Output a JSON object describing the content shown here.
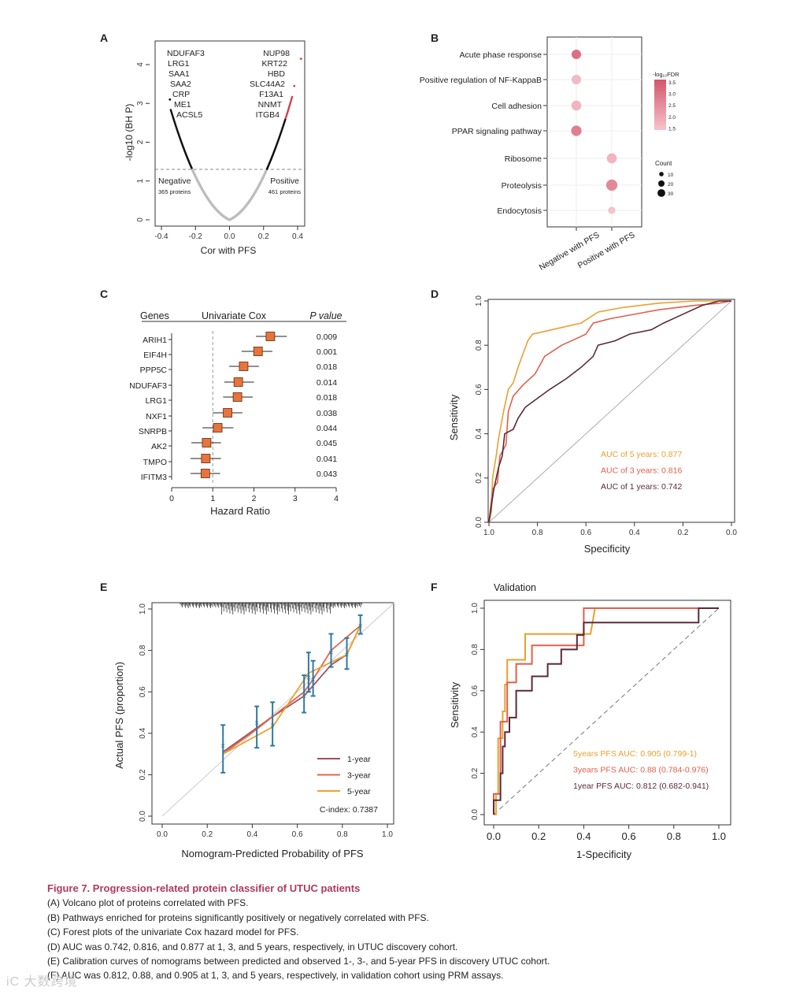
{
  "caption": {
    "title": "Figure 7.  Progression-related protein classifier of UTUC patients",
    "lines": [
      "(A) Volcano plot of proteins correlated with PFS.",
      "(B) Pathways enriched for proteins significantly positively or negatively correlated with PFS.",
      "(C) Forest plots of the univariate Cox hazard model for PFS.",
      "(D) AUC was 0.742, 0.816, and 0.877 at 1, 3, and 5 years, respectively, in UTUC discovery cohort.",
      "(E) Calibration curves of nomograms between predicted and observed 1-, 3-, and 5-year PFS in discovery UTUC cohort.",
      "(F) AUC was 0.812, 0.88, and 0.905 at 1, 3, and 5 years, respectively, in validation cohort using PRM assays."
    ]
  },
  "watermark": "iC 大数跨境",
  "chart_data": [
    {
      "panel": "A",
      "type": "scatter",
      "title": "",
      "xlabel": "Cor with PFS",
      "ylabel": "-log10 (BH P)",
      "xlim": [
        -0.45,
        0.45
      ],
      "ylim": [
        -0.1,
        4.4
      ],
      "xticks": [
        "-0.4",
        "-0.2",
        "0.0",
        "0.2",
        "0.4"
      ],
      "yticks": [
        "0",
        "1",
        "2",
        "3",
        "4"
      ],
      "threshold": 1.3,
      "negative": {
        "label": "Negative",
        "count_label": "365 proteins"
      },
      "positive": {
        "label": "Positive",
        "count_label": "461 proteins"
      },
      "genes_negative": [
        "NDUFAF3",
        "LRG1",
        "SAA1",
        "SAA2",
        "CRP",
        "ME1",
        "ACSL5"
      ],
      "genes_positive": [
        "NUP98",
        "KRT22",
        "HBD",
        "SLC44A2",
        "F13A1",
        "NNMT",
        "ITGB4"
      ],
      "outliers": [
        {
          "x": -0.35,
          "y": 3.1
        },
        {
          "x": 0.38,
          "y": 3.45
        },
        {
          "x": 0.42,
          "y": 4.15
        }
      ],
      "colors": {
        "ns": "#bdbdbd",
        "sig": "#111111",
        "top": "#d04050"
      }
    },
    {
      "panel": "B",
      "type": "scatter",
      "categories": [
        "Negative with PFS",
        "Positive with PFS"
      ],
      "pathways": [
        {
          "name": "Acute phase response",
          "group": 0,
          "neglogFDR": 3.3,
          "count": 20
        },
        {
          "name": "Positive regulation of NF-KappaB",
          "group": 0,
          "neglogFDR": 1.8,
          "count": 20
        },
        {
          "name": "Cell adhesion",
          "group": 0,
          "neglogFDR": 1.9,
          "count": 22
        },
        {
          "name": "PPAR signaling pathway",
          "group": 0,
          "neglogFDR": 3.0,
          "count": 24
        },
        {
          "name": "Ribosome",
          "group": 1,
          "neglogFDR": 1.9,
          "count": 22
        },
        {
          "name": "Proteolysis",
          "group": 1,
          "neglogFDR": 2.8,
          "count": 28
        },
        {
          "name": "Endocytosis",
          "group": 1,
          "neglogFDR": 1.6,
          "count": 12
        }
      ],
      "color_legend": {
        "title": "-log₁₀FDR",
        "ticks": [
          "3.5",
          "3.0",
          "2.5",
          "2.0",
          "1.5"
        ],
        "range": [
          1.5,
          3.5
        ],
        "low": "#f6c3ca",
        "high": "#d2566b"
      },
      "size_legend": {
        "title": "Count",
        "values": [
          10,
          20,
          30
        ],
        "labels": [
          "10",
          "20",
          "30"
        ]
      }
    },
    {
      "panel": "C",
      "type": "forest",
      "headers": [
        "Genes",
        "Univariate Cox",
        "P value"
      ],
      "xlabel": "Hazard Ratio",
      "xlim": [
        0,
        4
      ],
      "xticks": [
        "0",
        "1",
        "2",
        "3",
        "4"
      ],
      "reference": 1,
      "rows": [
        {
          "gene": "ARIH1",
          "hr": 2.4,
          "lo": 2.05,
          "hi": 2.8,
          "p": "0.009"
        },
        {
          "gene": "EIF4H",
          "hr": 2.1,
          "lo": 1.7,
          "hi": 2.45,
          "p": "0.001"
        },
        {
          "gene": "PPP5C",
          "hr": 1.75,
          "lo": 1.4,
          "hi": 2.12,
          "p": "0.018"
        },
        {
          "gene": "NDUFAF3",
          "hr": 1.62,
          "lo": 1.28,
          "hi": 2.0,
          "p": "0.014"
        },
        {
          "gene": "LRG1",
          "hr": 1.6,
          "lo": 1.25,
          "hi": 1.97,
          "p": "0.018"
        },
        {
          "gene": "NXF1",
          "hr": 1.36,
          "lo": 1.0,
          "hi": 1.72,
          "p": "0.038"
        },
        {
          "gene": "SNRPB",
          "hr": 1.12,
          "lo": 0.75,
          "hi": 1.5,
          "p": "0.044"
        },
        {
          "gene": "AK2",
          "hr": 0.85,
          "lo": 0.48,
          "hi": 1.2,
          "p": "0.045"
        },
        {
          "gene": "TMPO",
          "hr": 0.83,
          "lo": 0.46,
          "hi": 1.2,
          "p": "0.041"
        },
        {
          "gene": "IFITM3",
          "hr": 0.82,
          "lo": 0.46,
          "hi": 1.18,
          "p": "0.043"
        }
      ],
      "color": "#e8743b"
    },
    {
      "panel": "D",
      "type": "line",
      "xlabel": "Specificity",
      "ylabel": "Sensitivity",
      "xlim": [
        1.0,
        0.0
      ],
      "ylim": [
        0,
        1
      ],
      "xticks": [
        "1.0",
        "0.8",
        "0.6",
        "0.4",
        "0.2",
        "0.0"
      ],
      "yticks": [
        "0.0",
        "0.2",
        "0.4",
        "0.6",
        "0.8",
        "1.0"
      ],
      "series": [
        {
          "name": "AUC of 5 years: 0.877",
          "color": "#eaa030",
          "points": [
            [
              1,
              0
            ],
            [
              0.99,
              0.05
            ],
            [
              0.985,
              0.2
            ],
            [
              0.97,
              0.3
            ],
            [
              0.96,
              0.38
            ],
            [
              0.94,
              0.5
            ],
            [
              0.92,
              0.6
            ],
            [
              0.9,
              0.63
            ],
            [
              0.88,
              0.7
            ],
            [
              0.86,
              0.76
            ],
            [
              0.84,
              0.82
            ],
            [
              0.82,
              0.85
            ],
            [
              0.78,
              0.86
            ],
            [
              0.7,
              0.88
            ],
            [
              0.62,
              0.9
            ],
            [
              0.55,
              0.95
            ],
            [
              0.45,
              0.97
            ],
            [
              0.3,
              0.99
            ],
            [
              0.15,
              1
            ],
            [
              0,
              1
            ]
          ]
        },
        {
          "name": "AUC of 3 years: 0.816",
          "color": "#e2604a",
          "points": [
            [
              1,
              0
            ],
            [
              0.985,
              0.15
            ],
            [
              0.965,
              0.18
            ],
            [
              0.955,
              0.3
            ],
            [
              0.93,
              0.35
            ],
            [
              0.92,
              0.5
            ],
            [
              0.9,
              0.57
            ],
            [
              0.86,
              0.62
            ],
            [
              0.81,
              0.67
            ],
            [
              0.77,
              0.75
            ],
            [
              0.7,
              0.8
            ],
            [
              0.64,
              0.83
            ],
            [
              0.6,
              0.85
            ],
            [
              0.57,
              0.9
            ],
            [
              0.5,
              0.92
            ],
            [
              0.4,
              0.94
            ],
            [
              0.3,
              0.96
            ],
            [
              0.15,
              0.98
            ],
            [
              0.05,
              0.99
            ],
            [
              0,
              1
            ]
          ]
        },
        {
          "name": "AUC of 1 years: 0.742",
          "color": "#5a2a3a",
          "points": [
            [
              1,
              0
            ],
            [
              0.98,
              0.15
            ],
            [
              0.96,
              0.25
            ],
            [
              0.945,
              0.3
            ],
            [
              0.935,
              0.4
            ],
            [
              0.9,
              0.42
            ],
            [
              0.88,
              0.47
            ],
            [
              0.85,
              0.52
            ],
            [
              0.8,
              0.56
            ],
            [
              0.75,
              0.6
            ],
            [
              0.68,
              0.65
            ],
            [
              0.62,
              0.7
            ],
            [
              0.57,
              0.75
            ],
            [
              0.55,
              0.8
            ],
            [
              0.48,
              0.82
            ],
            [
              0.42,
              0.85
            ],
            [
              0.33,
              0.87
            ],
            [
              0.28,
              0.9
            ],
            [
              0.22,
              0.93
            ],
            [
              0.12,
              0.98
            ],
            [
              0.05,
              1
            ],
            [
              0,
              1
            ]
          ]
        }
      ]
    },
    {
      "panel": "E",
      "type": "line",
      "xlabel": "Nomogram-Predicted Probability of PFS",
      "ylabel": "Actual PFS (proportion)",
      "xlim": [
        0,
        1
      ],
      "ylim": [
        0,
        1
      ],
      "xticks": [
        "0.0",
        "0.2",
        "0.4",
        "0.6",
        "0.8",
        "1.0"
      ],
      "yticks": [
        "0.0",
        "0.2",
        "0.4",
        "0.6",
        "0.8",
        "1.0"
      ],
      "observed": [
        {
          "x": 0.27,
          "y": 0.34,
          "lo": 0.21,
          "hi": 0.44
        },
        {
          "x": 0.42,
          "y": 0.45,
          "lo": 0.33,
          "hi": 0.53
        },
        {
          "x": 0.49,
          "y": 0.44,
          "lo": 0.34,
          "hi": 0.55
        },
        {
          "x": 0.63,
          "y": 0.58,
          "lo": 0.5,
          "hi": 0.68
        },
        {
          "x": 0.65,
          "y": 0.67,
          "lo": 0.6,
          "hi": 0.79
        },
        {
          "x": 0.67,
          "y": 0.66,
          "lo": 0.58,
          "hi": 0.75
        },
        {
          "x": 0.75,
          "y": 0.79,
          "lo": 0.72,
          "hi": 0.88
        },
        {
          "x": 0.82,
          "y": 0.78,
          "lo": 0.71,
          "hi": 0.86
        },
        {
          "x": 0.88,
          "y": 0.92,
          "lo": 0.88,
          "hi": 0.97
        }
      ],
      "series": [
        {
          "name": "1-year",
          "color": "#a05060",
          "points": [
            [
              0.27,
              0.31
            ],
            [
              0.49,
              0.48
            ],
            [
              0.63,
              0.58
            ],
            [
              0.75,
              0.73
            ],
            [
              0.82,
              0.78
            ],
            [
              0.88,
              0.92
            ]
          ]
        },
        {
          "name": "3-year",
          "color": "#e0674a",
          "points": [
            [
              0.27,
              0.3
            ],
            [
              0.42,
              0.42
            ],
            [
              0.63,
              0.6
            ],
            [
              0.67,
              0.66
            ],
            [
              0.75,
              0.8
            ],
            [
              0.88,
              0.92
            ]
          ]
        },
        {
          "name": "5-year",
          "color": "#e8a530",
          "points": [
            [
              0.27,
              0.3
            ],
            [
              0.49,
              0.43
            ],
            [
              0.65,
              0.69
            ],
            [
              0.82,
              0.78
            ],
            [
              0.88,
              0.92
            ]
          ]
        }
      ],
      "error_color": "#2f78a8",
      "cindex": "C-index:  0.7387"
    },
    {
      "panel": "F",
      "type": "line",
      "title": "Validation",
      "xlabel": "1-Specificity",
      "ylabel": "Sensitivity",
      "xlim": [
        0,
        1
      ],
      "ylim": [
        0,
        1
      ],
      "xticks": [
        "0.0",
        "0.2",
        "0.4",
        "0.6",
        "0.8",
        "1.0"
      ],
      "yticks": [
        "0.0",
        "0.2",
        "0.4",
        "0.6",
        "0.8",
        "1.0"
      ],
      "series": [
        {
          "name": "5years PFS AUC: 0.905 (0.799-1)",
          "color": "#eaa030",
          "points": [
            [
              0,
              0
            ],
            [
              0.01,
              0
            ],
            [
              0.01,
              0.1
            ],
            [
              0.02,
              0.1
            ],
            [
              0.02,
              0.37
            ],
            [
              0.04,
              0.37
            ],
            [
              0.04,
              0.5
            ],
            [
              0.05,
              0.5
            ],
            [
              0.05,
              0.63
            ],
            [
              0.06,
              0.63
            ],
            [
              0.06,
              0.75
            ],
            [
              0.14,
              0.75
            ],
            [
              0.14,
              0.875
            ],
            [
              0.43,
              0.875
            ],
            [
              0.45,
              1
            ],
            [
              1,
              1
            ]
          ]
        },
        {
          "name": "3years PFS AUC: 0.88 (0.784-0.976)",
          "color": "#e2604a",
          "points": [
            [
              0,
              0
            ],
            [
              0,
              0.1
            ],
            [
              0.03,
              0.1
            ],
            [
              0.03,
              0.45
            ],
            [
              0.06,
              0.45
            ],
            [
              0.06,
              0.64
            ],
            [
              0.1,
              0.64
            ],
            [
              0.1,
              0.73
            ],
            [
              0.17,
              0.73
            ],
            [
              0.17,
              0.82
            ],
            [
              0.4,
              0.82
            ],
            [
              0.4,
              1
            ],
            [
              1,
              1
            ]
          ]
        },
        {
          "name": "1year PFS AUC: 0.812 (0.682-0.941)",
          "color": "#5a2a3a",
          "points": [
            [
              0,
              0
            ],
            [
              0,
              0.07
            ],
            [
              0.03,
              0.07
            ],
            [
              0.03,
              0.2
            ],
            [
              0.04,
              0.2
            ],
            [
              0.04,
              0.33
            ],
            [
              0.05,
              0.33
            ],
            [
              0.05,
              0.4
            ],
            [
              0.07,
              0.4
            ],
            [
              0.07,
              0.47
            ],
            [
              0.1,
              0.47
            ],
            [
              0.1,
              0.6
            ],
            [
              0.17,
              0.6
            ],
            [
              0.17,
              0.67
            ],
            [
              0.24,
              0.67
            ],
            [
              0.24,
              0.73
            ],
            [
              0.3,
              0.73
            ],
            [
              0.3,
              0.8
            ],
            [
              0.37,
              0.8
            ],
            [
              0.37,
              0.87
            ],
            [
              0.4,
              0.87
            ],
            [
              0.4,
              0.93
            ],
            [
              0.91,
              0.93
            ],
            [
              0.91,
              1
            ],
            [
              1,
              1
            ]
          ]
        }
      ]
    }
  ],
  "panel_labels": [
    "A",
    "B",
    "C",
    "D",
    "E",
    "F"
  ]
}
